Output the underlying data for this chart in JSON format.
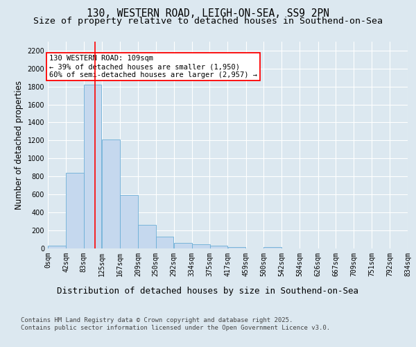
{
  "title_line1": "130, WESTERN ROAD, LEIGH-ON-SEA, SS9 2PN",
  "title_line2": "Size of property relative to detached houses in Southend-on-Sea",
  "xlabel": "Distribution of detached houses by size in Southend-on-Sea",
  "ylabel": "Number of detached properties",
  "bin_labels": [
    "0sqm",
    "42sqm",
    "83sqm",
    "125sqm",
    "167sqm",
    "209sqm",
    "250sqm",
    "292sqm",
    "334sqm",
    "375sqm",
    "417sqm",
    "459sqm",
    "500sqm",
    "542sqm",
    "584sqm",
    "626sqm",
    "667sqm",
    "709sqm",
    "751sqm",
    "792sqm",
    "834sqm"
  ],
  "bin_edges": [
    0,
    42,
    83,
    125,
    167,
    209,
    250,
    292,
    334,
    375,
    417,
    459,
    500,
    542,
    584,
    626,
    667,
    709,
    751,
    792,
    834
  ],
  "bar_heights": [
    25,
    840,
    1820,
    1210,
    590,
    260,
    130,
    55,
    45,
    25,
    15,
    0,
    15,
    0,
    0,
    0,
    0,
    0,
    0,
    0
  ],
  "bar_color": "#c5d8ee",
  "bar_edge_color": "#6baed6",
  "vline_x": 109,
  "vline_color": "red",
  "annotation_text": "130 WESTERN ROAD: 109sqm\n← 39% of detached houses are smaller (1,950)\n60% of semi-detached houses are larger (2,957) →",
  "annotation_box_color": "white",
  "annotation_box_edge": "red",
  "ylim": [
    0,
    2300
  ],
  "yticks": [
    0,
    200,
    400,
    600,
    800,
    1000,
    1200,
    1400,
    1600,
    1800,
    2000,
    2200
  ],
  "background_color": "#dce8f0",
  "plot_bg_color": "#dce8f0",
  "footer": "Contains HM Land Registry data © Crown copyright and database right 2025.\nContains public sector information licensed under the Open Government Licence v3.0.",
  "grid_color": "white",
  "title_fontsize": 10.5,
  "subtitle_fontsize": 9.5,
  "axis_label_fontsize": 9,
  "ylabel_fontsize": 8.5,
  "tick_fontsize": 7,
  "annotation_fontsize": 7.5,
  "footer_fontsize": 6.5
}
